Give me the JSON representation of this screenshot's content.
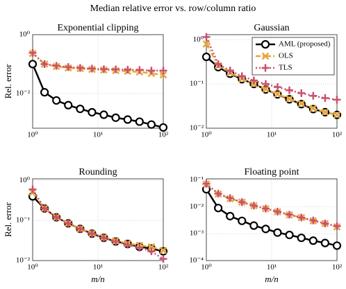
{
  "title": "Median relative error vs. row/column ratio",
  "chart_data": [
    {
      "type": "line",
      "title": "Exponential clipping",
      "ylabel": "Rel. error",
      "log_x": true,
      "log_y": true,
      "grid": true,
      "x": [
        1,
        1.52,
        2.31,
        3.51,
        5.34,
        8.11,
        12.3,
        18.7,
        28.5,
        43.3,
        65.8,
        100
      ],
      "xlim": [
        1,
        100
      ],
      "xticks": [
        {
          "value": 1,
          "label": "10⁰"
        },
        {
          "value": 10,
          "label": "10¹"
        },
        {
          "value": 100,
          "label": "10²"
        }
      ],
      "ylim": [
        0.00066,
        1
      ],
      "yticks": [
        {
          "value": 1,
          "label": "10⁰"
        },
        {
          "value": 0.01,
          "label": "10⁻²"
        }
      ],
      "series": [
        {
          "color": "#000000",
          "style": "solid",
          "marker": "circle",
          "values": [
            0.1,
            0.011,
            0.0058,
            0.004,
            0.003,
            0.0023,
            0.0019,
            0.0015,
            0.0013,
            0.0011,
            0.00088,
            0.0007
          ]
        },
        {
          "color": "#e8a63a",
          "style": "dashdot",
          "marker": "x",
          "values": [
            0.23,
            0.1,
            0.083,
            0.074,
            0.07,
            0.066,
            0.063,
            0.06,
            0.057,
            0.054,
            0.048,
            0.043
          ]
        },
        {
          "color": "#c9506f",
          "style": "dotted",
          "marker": "plus",
          "values": [
            0.24,
            0.1,
            0.087,
            0.079,
            0.074,
            0.07,
            0.067,
            0.066,
            0.064,
            0.063,
            0.06,
            0.06
          ]
        }
      ]
    },
    {
      "type": "line",
      "title": "Gaussian",
      "log_x": true,
      "log_y": true,
      "grid": true,
      "legend": "upper right",
      "x": [
        1,
        1.52,
        2.31,
        3.51,
        5.34,
        8.11,
        12.3,
        18.7,
        28.5,
        43.3,
        65.8,
        100
      ],
      "xlim": [
        1,
        100
      ],
      "xticks": [
        {
          "value": 1,
          "label": "10⁰"
        },
        {
          "value": 10,
          "label": "10¹"
        },
        {
          "value": 100,
          "label": "10²"
        }
      ],
      "ylim": [
        0.01,
        1.3
      ],
      "yticks": [
        {
          "value": 1,
          "label": "10⁰"
        },
        {
          "value": 0.1,
          "label": "10⁻¹"
        },
        {
          "value": 0.01,
          "label": "10⁻²"
        }
      ],
      "series": [
        {
          "name": "AML (proposed)",
          "color": "#000000",
          "style": "solid",
          "marker": "circle",
          "values": [
            0.41,
            0.24,
            0.17,
            0.128,
            0.1,
            0.075,
            0.058,
            0.045,
            0.035,
            0.027,
            0.023,
            0.02
          ]
        },
        {
          "name": "OLS",
          "color": "#e8a63a",
          "style": "dashdot",
          "marker": "x",
          "values": [
            0.8,
            0.26,
            0.18,
            0.13,
            0.1,
            0.076,
            0.059,
            0.046,
            0.036,
            0.028,
            0.023,
            0.02
          ]
        },
        {
          "name": "TLS",
          "color": "#c9506f",
          "style": "dotted",
          "marker": "plus",
          "values": [
            1.15,
            0.28,
            0.2,
            0.15,
            0.12,
            0.1,
            0.085,
            0.072,
            0.062,
            0.054,
            0.048,
            0.044
          ]
        }
      ]
    },
    {
      "type": "line",
      "title": "Rounding",
      "ylabel": "Rel. error",
      "xlabel": "m/n",
      "log_x": true,
      "log_y": true,
      "grid": true,
      "x": [
        1,
        1.52,
        2.31,
        3.51,
        5.34,
        8.11,
        12.3,
        18.7,
        28.5,
        43.3,
        65.8,
        100
      ],
      "xlim": [
        1,
        100
      ],
      "xticks": [
        {
          "value": 1,
          "label": "10⁰"
        },
        {
          "value": 10,
          "label": "10¹"
        },
        {
          "value": 100,
          "label": "10²"
        }
      ],
      "ylim": [
        0.01,
        1.1
      ],
      "yticks": [
        {
          "value": 1,
          "label": "10⁰"
        },
        {
          "value": 0.1,
          "label": "10⁻¹"
        },
        {
          "value": 0.01,
          "label": "10⁻²"
        }
      ],
      "series": [
        {
          "color": "#000000",
          "style": "solid",
          "marker": "circle",
          "values": [
            0.4,
            0.2,
            0.12,
            0.085,
            0.062,
            0.047,
            0.037,
            0.03,
            0.026,
            0.022,
            0.02,
            0.017
          ]
        },
        {
          "color": "#e8a63a",
          "style": "dashdot",
          "marker": "x",
          "values": [
            0.5,
            0.2,
            0.12,
            0.085,
            0.062,
            0.048,
            0.038,
            0.031,
            0.027,
            0.024,
            0.022,
            0.018
          ]
        },
        {
          "color": "#c9506f",
          "style": "dotted",
          "marker": "plus",
          "values": [
            0.6,
            0.2,
            0.12,
            0.085,
            0.062,
            0.047,
            0.037,
            0.03,
            0.025,
            0.021,
            0.017,
            0.011
          ]
        }
      ]
    },
    {
      "type": "line",
      "title": "Floating point",
      "xlabel": "m/n",
      "log_x": true,
      "log_y": true,
      "grid": true,
      "x": [
        1,
        1.52,
        2.31,
        3.51,
        5.34,
        8.11,
        12.3,
        18.7,
        28.5,
        43.3,
        65.8,
        100
      ],
      "xlim": [
        1,
        100
      ],
      "xticks": [
        {
          "value": 1,
          "label": "10⁰"
        },
        {
          "value": 10,
          "label": "10¹"
        },
        {
          "value": 100,
          "label": "10²"
        }
      ],
      "ylim": [
        0.0001,
        0.11
      ],
      "yticks": [
        {
          "value": 0.1,
          "label": "10⁻¹"
        },
        {
          "value": 0.01,
          "label": "10⁻²"
        },
        {
          "value": 0.001,
          "label": "10⁻³"
        },
        {
          "value": 0.0001,
          "label": "10⁻⁴"
        }
      ],
      "series": [
        {
          "color": "#000000",
          "style": "solid",
          "marker": "circle",
          "values": [
            0.045,
            0.009,
            0.0045,
            0.003,
            0.002,
            0.0015,
            0.0011,
            0.0009,
            0.0007,
            0.00055,
            0.00045,
            0.00036
          ]
        },
        {
          "color": "#e8a63a",
          "style": "dashdot",
          "marker": "x",
          "values": [
            0.07,
            0.03,
            0.02,
            0.015,
            0.011,
            0.0085,
            0.0065,
            0.005,
            0.004,
            0.003,
            0.0024,
            0.0018
          ]
        },
        {
          "color": "#c9506f",
          "style": "dotted",
          "marker": "plus",
          "values": [
            0.072,
            0.031,
            0.021,
            0.015,
            0.011,
            0.0086,
            0.0066,
            0.0051,
            0.004,
            0.0031,
            0.0024,
            0.0019
          ]
        }
      ]
    }
  ]
}
